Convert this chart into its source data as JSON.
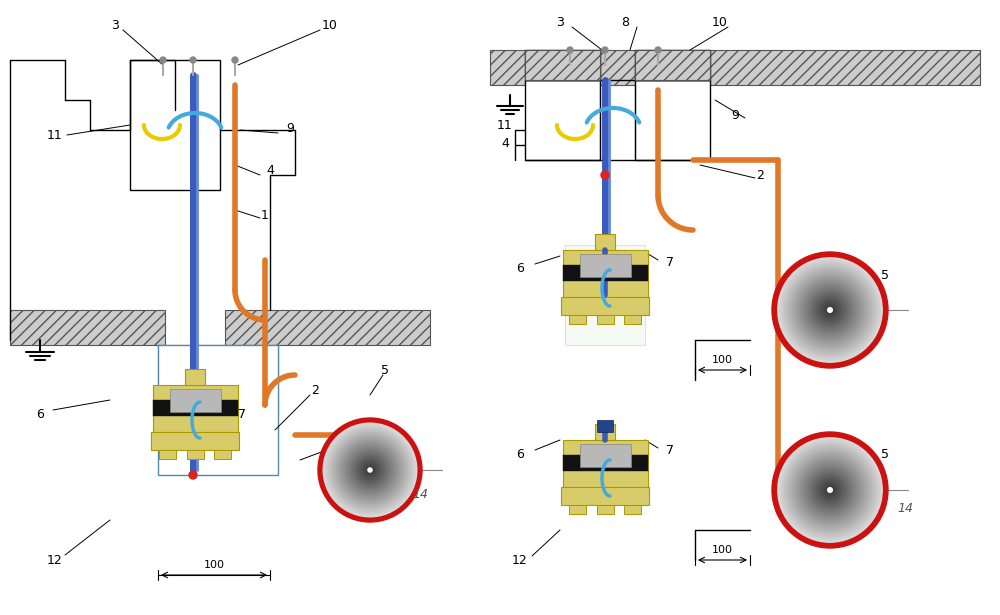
{
  "background": "#ffffff",
  "fig_width": 10.0,
  "fig_height": 6.15,
  "dpi": 100,
  "blue_cable": "#3a5abf",
  "blue_cable2": "#4488cc",
  "orange_cable": "#e07828",
  "yellow_wire": "#e8cc00",
  "cyan_wire": "#44aadd",
  "device_yellow": "#d8cc6a",
  "device_yellow_edge": "#aa9900",
  "device_black": "#111111",
  "device_gray": "#aaaaaa",
  "globe_red": "#cc1111",
  "hatch_gray": "#cccccc",
  "line_color": "#222222"
}
